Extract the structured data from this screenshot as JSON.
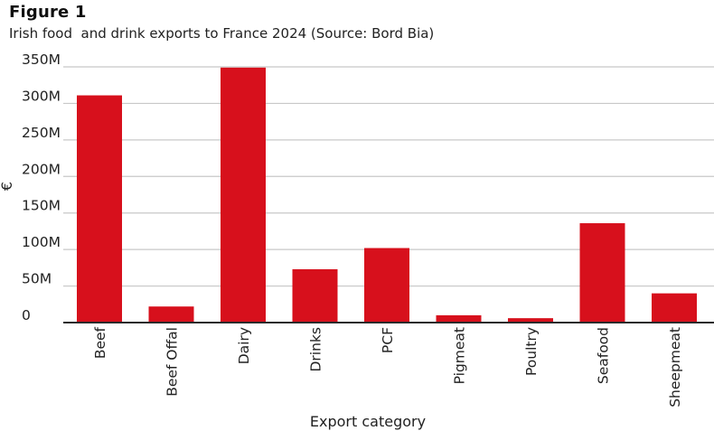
{
  "figure": {
    "label": "Figure 1",
    "title": "Irish food  and drink exports to France 2024 (Source: Bord Bia)"
  },
  "colors": {
    "bar": "#d7101c",
    "grid": "#c8c8c8",
    "axis": "#2a2a2a"
  },
  "chart_data": {
    "type": "bar",
    "title": "Irish food  and drink exports to France 2024 (Source: Bord Bia)",
    "xlabel": "Export category",
    "ylabel": "€",
    "categories": [
      "Beef",
      "Beef Offal",
      "Dairy",
      "Drinks",
      "PCF",
      "Pigmeat",
      "Poultry",
      "Seafood",
      "Sheepmeat"
    ],
    "values": [
      311,
      22,
      349,
      73,
      102,
      10,
      6,
      136,
      40
    ],
    "unit": "M",
    "ylim": [
      0,
      350
    ],
    "yticks": [
      0,
      50,
      100,
      150,
      200,
      250,
      300,
      350
    ],
    "ytick_labels": [
      "0",
      "50M",
      "100M",
      "150M",
      "200M",
      "250M",
      "300M",
      "350M"
    ],
    "grid": true,
    "legend": "none"
  }
}
